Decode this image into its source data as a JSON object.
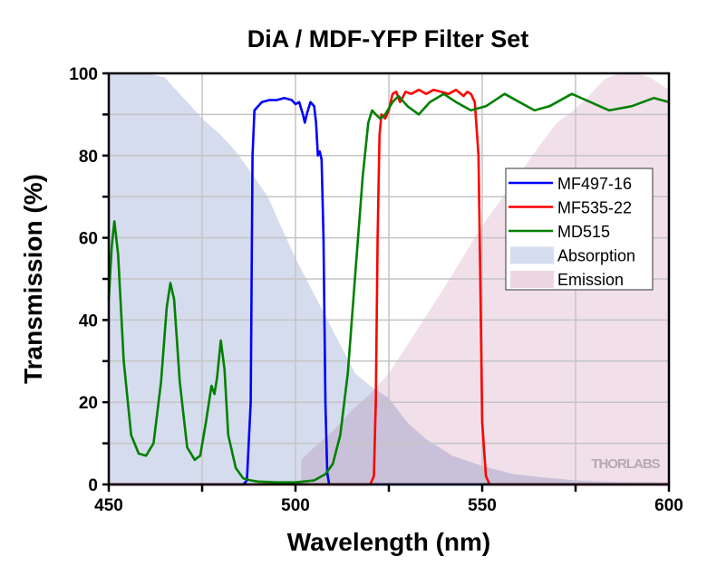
{
  "chart_data": {
    "type": "line",
    "title": "DiA / MDF-YFP Filter Set",
    "xlabel": "Wavelength (nm)",
    "ylabel": "Transmission (%)",
    "xlim": [
      450,
      600
    ],
    "ylim": [
      0,
      100
    ],
    "xticks": [
      450,
      500,
      550,
      600
    ],
    "yticks": [
      0,
      20,
      40,
      60,
      80,
      100
    ],
    "grid": true,
    "legend_position": "right",
    "watermark": "THORLABS",
    "series": [
      {
        "name": "MF497-16",
        "kind": "line",
        "color": "#0000ff",
        "x": [
          450,
          486,
          487,
          488,
          488.5,
          489,
          490,
          491,
          493,
          495,
          497,
          499,
          500,
          501,
          502,
          502.5,
          503,
          504,
          505,
          505.5,
          506,
          506.5,
          507,
          507.5,
          508,
          508.5,
          509,
          510,
          600
        ],
        "y": [
          0,
          0,
          1,
          20,
          80,
          91,
          92,
          93,
          93.5,
          93.5,
          94,
          93.5,
          92.5,
          93,
          90,
          88,
          90,
          93,
          92,
          88,
          80,
          81,
          79,
          60,
          20,
          3,
          0,
          0,
          0
        ]
      },
      {
        "name": "MF535-22",
        "kind": "line",
        "color": "#ff0000",
        "x": [
          450,
          520,
          521,
          521.5,
          522,
          522.5,
          523,
          524,
          525,
          526,
          527,
          528,
          529.5,
          531,
          533,
          535,
          537,
          539,
          541,
          543,
          545,
          546,
          547,
          548,
          549,
          549.5,
          550,
          551,
          552,
          600
        ],
        "y": [
          0,
          0,
          2,
          20,
          60,
          85,
          90,
          89,
          91,
          95,
          95.5,
          93,
          95.5,
          95,
          96,
          95,
          96,
          95.5,
          95,
          96,
          94.5,
          95.5,
          95,
          93,
          80,
          50,
          15,
          2,
          0,
          0
        ]
      },
      {
        "name": "MD515",
        "kind": "line",
        "color": "#008000",
        "x": [
          450,
          450.8,
          451.5,
          452.5,
          454,
          456,
          458,
          460,
          462,
          464,
          465.5,
          466.5,
          467.5,
          469,
          471,
          473,
          474.5,
          476,
          477.5,
          478.3,
          479,
          480,
          481,
          482,
          484,
          486,
          488,
          490,
          495,
          500,
          505,
          508,
          510,
          512,
          514,
          516,
          518,
          519.5,
          520.5,
          521.5,
          522.7,
          524,
          526,
          527.6,
          530,
          533,
          536,
          539.7,
          543,
          547,
          551,
          556,
          560,
          564,
          568,
          574,
          579,
          584,
          590,
          596,
          600
        ],
        "y": [
          45,
          58,
          64,
          56,
          30,
          12,
          7.5,
          7,
          10,
          25,
          43,
          49,
          45,
          25,
          9,
          6,
          7,
          15,
          24,
          22,
          26,
          35,
          28,
          12,
          4,
          1.5,
          1,
          0.7,
          0.5,
          0.5,
          1,
          2.5,
          5,
          12,
          27,
          51,
          75,
          88,
          91,
          90,
          89,
          90,
          93,
          94.5,
          92,
          90,
          93,
          95,
          93,
          91,
          92,
          95,
          93,
          91,
          92,
          95,
          93,
          91,
          92,
          94,
          93
        ]
      },
      {
        "name": "Absorption",
        "kind": "area",
        "color": "#d5dcee",
        "x": [
          450,
          456,
          460,
          465,
          469,
          472,
          475,
          480,
          484,
          488,
          492.6,
          496,
          500,
          504,
          508,
          512,
          516,
          520,
          525,
          530,
          535,
          542,
          550,
          558,
          565,
          575,
          585,
          600
        ],
        "y": [
          100,
          100,
          100,
          99,
          95,
          92,
          89,
          85,
          81,
          76,
          70,
          63,
          55,
          48,
          41,
          34,
          27,
          24,
          21,
          15,
          11,
          7,
          4.5,
          2.6,
          1.8,
          1,
          0.6,
          0.5
        ]
      },
      {
        "name": "Emission",
        "kind": "area",
        "color": "#ecd6e2",
        "x": [
          501.5,
          505,
          510,
          515,
          520,
          525,
          530,
          535,
          542,
          550,
          558,
          565,
          570,
          574.5,
          579,
          583,
          587,
          591,
          595,
          600
        ],
        "y": [
          6,
          9,
          13,
          18,
          22,
          27,
          34,
          41,
          51,
          63,
          73,
          82,
          88,
          91,
          95,
          98.7,
          100,
          100,
          99,
          96
        ]
      }
    ]
  }
}
